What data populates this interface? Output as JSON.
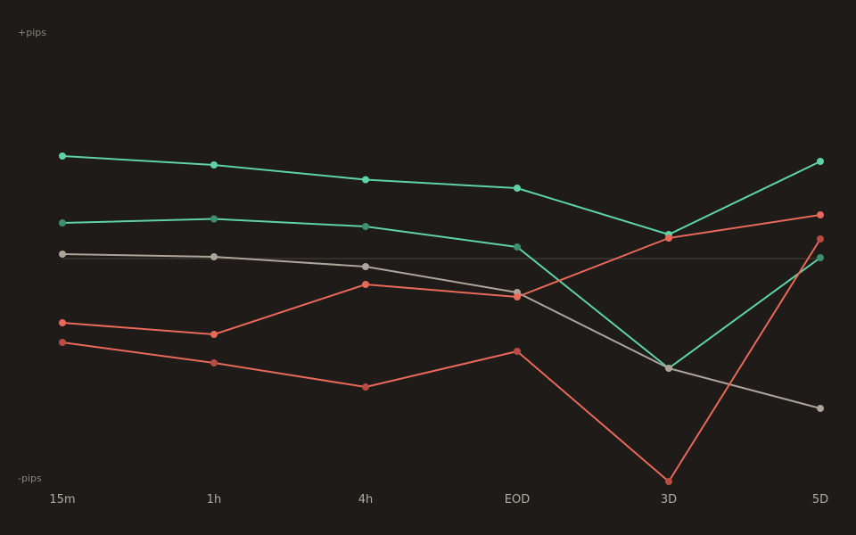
{
  "colors": {
    "background": "#1e1b18",
    "zero_line": "#3a3631",
    "green": "#5fd3a5",
    "green_dim": "#3e8f6d",
    "red": "#e8685a",
    "red_dim": "#b84c43",
    "gray": "#ada49b"
  },
  "chart_data": {
    "type": "line",
    "categories": [
      "15m",
      "1h",
      "4h",
      "EOD",
      "3D",
      "5D"
    ],
    "y_top_label": "+pips",
    "y_bottom_label": "-pips",
    "ylim": [
      -50,
      50
    ],
    "zero_line": true,
    "grid": false,
    "legend": "none",
    "series": [
      {
        "color": "#5fd3a5",
        "marker_color": "#5fd3a5",
        "values": [
          23,
          21,
          17.7,
          15.8,
          5.4,
          21.8
        ]
      },
      {
        "color": "#5fd3a5",
        "marker_color": "#3e8f6d",
        "values": [
          8,
          8.9,
          7.2,
          2.6,
          -24.6,
          0.2
        ]
      },
      {
        "color": "#ada49b",
        "marker_color": "#ada49b",
        "values": [
          1,
          0.4,
          -1.8,
          -7.6,
          -24.6,
          -33.6
        ]
      },
      {
        "color": "#e8685a",
        "marker_color": "#e8685a",
        "values": [
          -14.4,
          -17,
          -5.8,
          -8.6,
          4.6,
          9.8
        ]
      },
      {
        "color": "#e8685a",
        "marker_color": "#b84c43",
        "values": [
          -18.8,
          -23.4,
          -28.8,
          -20.8,
          -50,
          4.4
        ]
      }
    ]
  }
}
